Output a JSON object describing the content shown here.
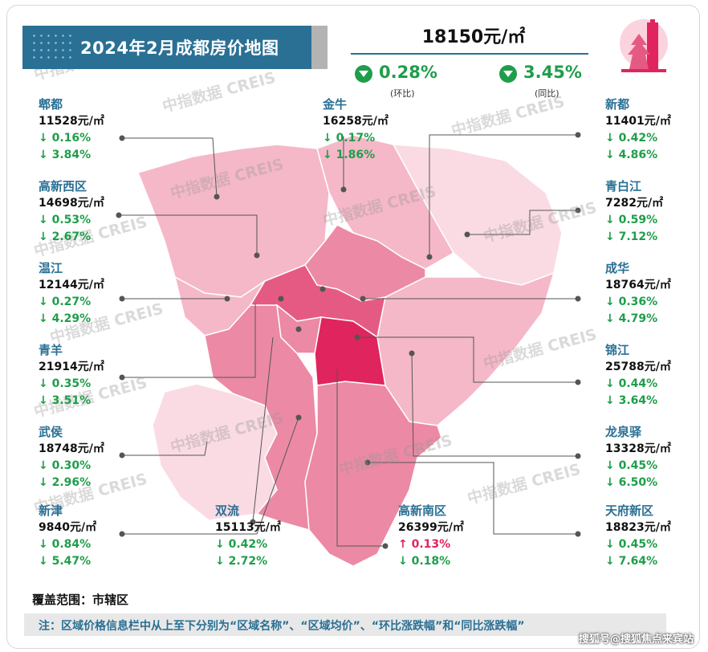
{
  "title": "2024年2月成都房价地图",
  "average": {
    "price": "18150元/㎡",
    "mom": {
      "value": "0.28%",
      "label": "(环比)",
      "direction": "down"
    },
    "yoy": {
      "value": "3.45%",
      "label": "(同比)",
      "direction": "down"
    }
  },
  "colors": {
    "brand_blue": "#2a6f94",
    "down_green": "#1e9e4a",
    "up_red": "#e0245e",
    "lightest_pink": "#fadbe4",
    "light_pink": "#f4b8c9",
    "mid_pink": "#ec8aa6",
    "dark_pink": "#e45a83",
    "deepest_pink": "#e0245e"
  },
  "districts": [
    {
      "id": "pidu",
      "name": "郫都",
      "price": "11528元/㎡",
      "mom": "↓ 0.16%",
      "yoy": "↓ 3.84%",
      "mom_dir": "down",
      "yoy_dir": "down"
    },
    {
      "id": "jinniu",
      "name": "金牛",
      "price": "16258元/㎡",
      "mom": "↓ 0.17%",
      "yoy": "↓ 1.86%",
      "mom_dir": "down",
      "yoy_dir": "down"
    },
    {
      "id": "xindu",
      "name": "新都",
      "price": "11401元/㎡",
      "mom": "↓ 0.42%",
      "yoy": "↓ 4.86%",
      "mom_dir": "down",
      "yoy_dir": "down"
    },
    {
      "id": "gaoxinxi",
      "name": "高新西区",
      "price": "14698元/㎡",
      "mom": "↓ 0.53%",
      "yoy": "↓ 2.67%",
      "mom_dir": "down",
      "yoy_dir": "down"
    },
    {
      "id": "qingbaijiang",
      "name": "青白江",
      "price": "7282元/㎡",
      "mom": "↓ 0.59%",
      "yoy": "↓ 7.12%",
      "mom_dir": "down",
      "yoy_dir": "down"
    },
    {
      "id": "wenjiang",
      "name": "温江",
      "price": "12144元/㎡",
      "mom": "↓ 0.27%",
      "yoy": "↓ 4.29%",
      "mom_dir": "down",
      "yoy_dir": "down"
    },
    {
      "id": "chenghua",
      "name": "成华",
      "price": "18764元/㎡",
      "mom": "↓ 0.36%",
      "yoy": "↓ 4.79%",
      "mom_dir": "down",
      "yoy_dir": "down"
    },
    {
      "id": "qingyang",
      "name": "青羊",
      "price": "21914元/㎡",
      "mom": "↓ 0.35%",
      "yoy": "↓ 3.51%",
      "mom_dir": "down",
      "yoy_dir": "down"
    },
    {
      "id": "jinjiang",
      "name": "锦江",
      "price": "25788元/㎡",
      "mom": "↓ 0.44%",
      "yoy": "↓ 3.64%",
      "mom_dir": "down",
      "yoy_dir": "down"
    },
    {
      "id": "wuhou",
      "name": "武侯",
      "price": "18748元/㎡",
      "mom": "↓ 0.30%",
      "yoy": "↓ 2.96%",
      "mom_dir": "down",
      "yoy_dir": "down"
    },
    {
      "id": "longquanyi",
      "name": "龙泉驿",
      "price": "13328元/㎡",
      "mom": "↓ 0.45%",
      "yoy": "↓ 6.50%",
      "mom_dir": "down",
      "yoy_dir": "down"
    },
    {
      "id": "xinjin",
      "name": "新津",
      "price": "9840元/㎡",
      "mom": "↓ 0.84%",
      "yoy": "↓ 5.47%",
      "mom_dir": "down",
      "yoy_dir": "down"
    },
    {
      "id": "shuangliu",
      "name": "双流",
      "price": "15113元/㎡",
      "mom": "↓ 0.42%",
      "yoy": "↓ 2.72%",
      "mom_dir": "down",
      "yoy_dir": "down"
    },
    {
      "id": "gaoxinnan",
      "name": "高新南区",
      "price": "26399元/㎡",
      "mom": "↑ 0.13%",
      "yoy": "↓ 0.18%",
      "mom_dir": "up",
      "yoy_dir": "down"
    },
    {
      "id": "tianfu",
      "name": "天府新区",
      "price": "18823元/㎡",
      "mom": "↓ 0.45%",
      "yoy": "↓ 7.64%",
      "mom_dir": "down",
      "yoy_dir": "down"
    }
  ],
  "watermark": "中指数据 CREIS",
  "coverage": "覆盖范围：市辖区",
  "note": "注：区域价格信息栏中从上至下分别为“区域名称”、“区域均价”、“环比涨跌幅”和“同比涨跌幅”",
  "attribution": "搜狐号@搜狐焦点来宾站",
  "logo_icon": "city-tower-icon"
}
